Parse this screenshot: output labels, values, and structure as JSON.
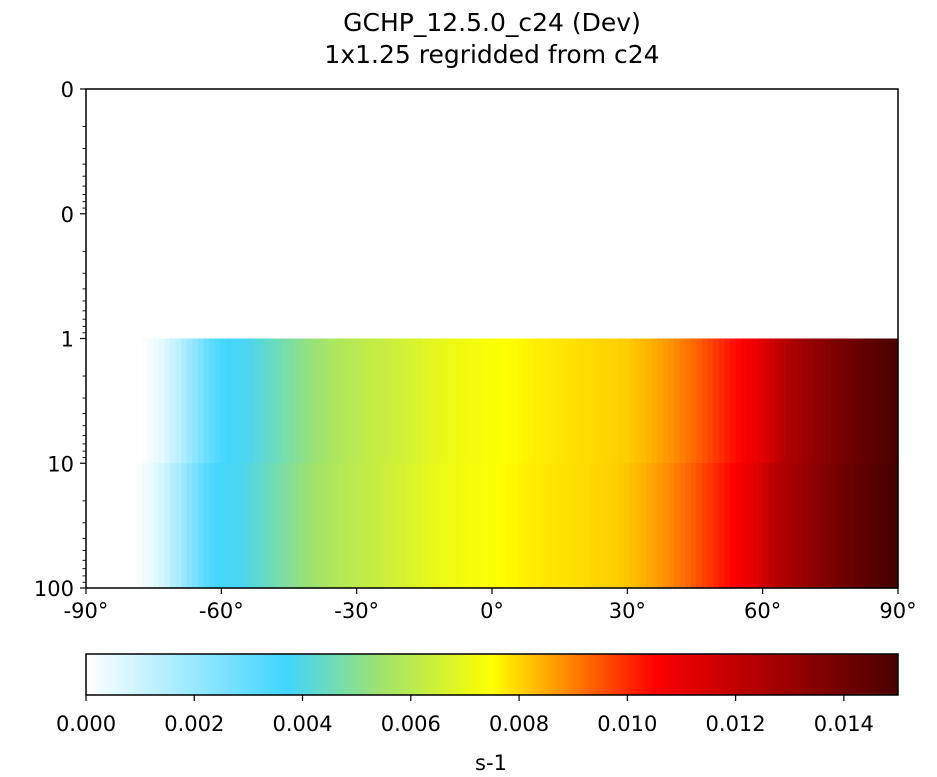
{
  "chart_data": {
    "type": "heatmap",
    "title": "GCHP_12.5.0_c24 (Dev)",
    "subtitle": "1x1.25 regridded from c24",
    "xlabel": "",
    "ylabel": "",
    "x_scale": "linear",
    "y_scale": "log",
    "y_inverted": true,
    "xlim": [
      -90,
      90
    ],
    "xticks": [
      -90,
      -60,
      -30,
      0,
      30,
      60,
      90
    ],
    "xtick_labels": [
      "-90°",
      "-60°",
      "-30°",
      "0°",
      "30°",
      "60°",
      "90°"
    ],
    "ylim": [
      100,
      0.01
    ],
    "yticks": [
      0.01,
      0.1,
      1,
      10,
      100
    ],
    "ytick_labels": [
      "0",
      "0",
      "1",
      "10",
      "100"
    ],
    "data_top_pressure": 1,
    "data_nonzero_from_lat": -75,
    "profile": {
      "lat": [
        -90,
        -78,
        -74,
        -70,
        -66,
        -62,
        -58,
        -54,
        -50,
        -45,
        -40,
        -35,
        -30,
        -20,
        -10,
        0,
        10,
        20,
        30,
        35,
        40,
        45,
        50,
        55,
        60,
        62,
        65,
        70,
        75,
        80,
        85,
        90
      ],
      "value": [
        0.0,
        0.0,
        0.0004,
        0.0012,
        0.0022,
        0.0032,
        0.0038,
        0.0039,
        0.0043,
        0.0048,
        0.0053,
        0.0057,
        0.006,
        0.0065,
        0.0071,
        0.0074,
        0.0077,
        0.0079,
        0.0081,
        0.0084,
        0.0088,
        0.0093,
        0.0099,
        0.0105,
        0.0112,
        0.0117,
        0.0124,
        0.013,
        0.0136,
        0.0141,
        0.0146,
        0.015
      ]
    },
    "colorbar": {
      "label": "s-1",
      "vmin": 0.0,
      "vmax": 0.015,
      "ticks": [
        "0.000",
        "0.002",
        "0.004",
        "0.006",
        "0.008",
        "0.010",
        "0.012",
        "0.014"
      ],
      "colormap": [
        {
          "value": 0.0,
          "color": "#ffffff"
        },
        {
          "value": 0.0037,
          "color": "#40d5ff"
        },
        {
          "value": 0.0055,
          "color": "#a2e36a"
        },
        {
          "value": 0.0075,
          "color": "#ffff00"
        },
        {
          "value": 0.0105,
          "color": "#ff0000"
        },
        {
          "value": 0.015,
          "color": "#4a0000"
        }
      ]
    }
  }
}
